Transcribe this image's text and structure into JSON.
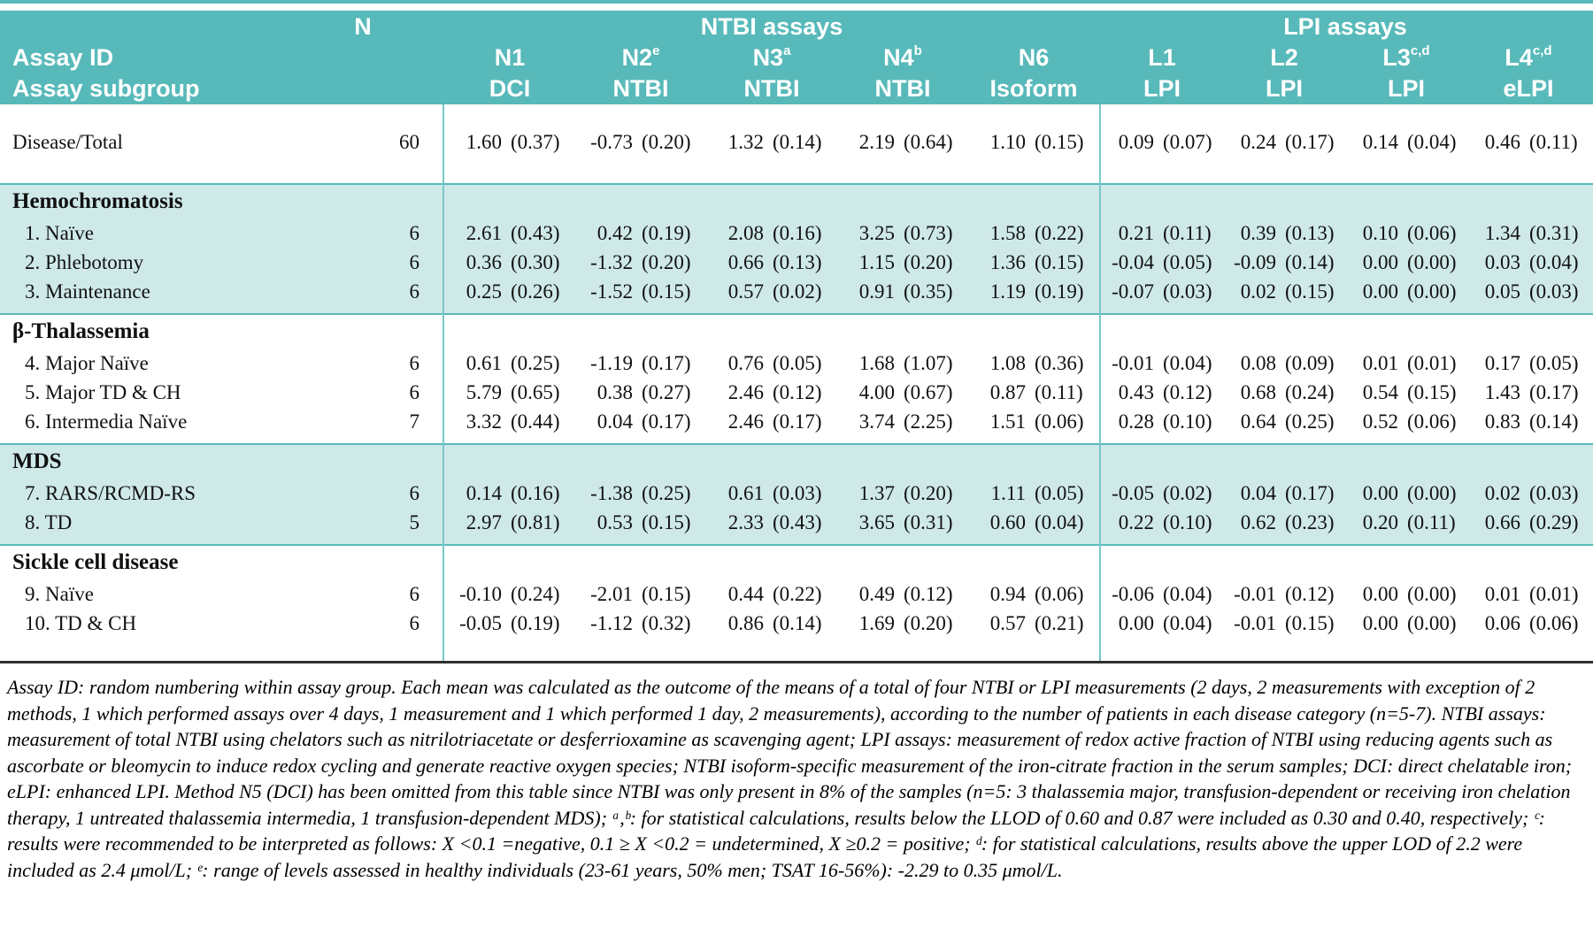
{
  "colors": {
    "header_teal": "#58b9ba",
    "section_tint": "#cfe9e9",
    "separator_teal": "#79c7c7",
    "bottom_rule": "#2f2f2f"
  },
  "table": {
    "top_header": {
      "n": "N",
      "ntbi": "NTBI assays",
      "lpi": "LPI assays"
    },
    "assay_id_label": "Assay ID",
    "assay_subgroup_label": "Assay subgroup",
    "columns": [
      {
        "id": "N1",
        "sup": "",
        "subgroup": "DCI",
        "group": "ntbi"
      },
      {
        "id": "N2",
        "sup": "e",
        "subgroup": "NTBI",
        "group": "ntbi"
      },
      {
        "id": "N3",
        "sup": "a",
        "subgroup": "NTBI",
        "group": "ntbi"
      },
      {
        "id": "N4",
        "sup": "b",
        "subgroup": "NTBI",
        "group": "ntbi"
      },
      {
        "id": "N6",
        "sup": "",
        "subgroup": "Isoform",
        "group": "ntbi"
      },
      {
        "id": "L1",
        "sup": "",
        "subgroup": "LPI",
        "group": "lpi"
      },
      {
        "id": "L2",
        "sup": "",
        "subgroup": "LPI",
        "group": "lpi"
      },
      {
        "id": "L3",
        "sup": "c,d",
        "subgroup": "LPI",
        "group": "lpi"
      },
      {
        "id": "L4",
        "sup": "c,d",
        "subgroup": "eLPI",
        "group": "lpi"
      }
    ],
    "sections": [
      {
        "title": "",
        "tint": false,
        "rows": [
          {
            "label": "Disease/Total",
            "n": "60",
            "values": [
              [
                "1.60",
                "(0.37)"
              ],
              [
                "-0.73",
                "(0.20)"
              ],
              [
                "1.32",
                "(0.14)"
              ],
              [
                "2.19",
                "(0.64)"
              ],
              [
                "1.10",
                "(0.15)"
              ],
              [
                "0.09",
                "(0.07)"
              ],
              [
                "0.24",
                "(0.17)"
              ],
              [
                "0.14",
                "(0.04)"
              ],
              [
                "0.46",
                "(0.11)"
              ]
            ]
          }
        ]
      },
      {
        "title": "Hemochromatosis",
        "tint": true,
        "rows": [
          {
            "label": "1. Naïve",
            "n": "6",
            "values": [
              [
                "2.61",
                "(0.43)"
              ],
              [
                "0.42",
                "(0.19)"
              ],
              [
                "2.08",
                "(0.16)"
              ],
              [
                "3.25",
                "(0.73)"
              ],
              [
                "1.58",
                "(0.22)"
              ],
              [
                "0.21",
                "(0.11)"
              ],
              [
                "0.39",
                "(0.13)"
              ],
              [
                "0.10",
                "(0.06)"
              ],
              [
                "1.34",
                "(0.31)"
              ]
            ]
          },
          {
            "label": "2. Phlebotomy",
            "n": "6",
            "values": [
              [
                "0.36",
                "(0.30)"
              ],
              [
                "-1.32",
                "(0.20)"
              ],
              [
                "0.66",
                "(0.13)"
              ],
              [
                "1.15",
                "(0.20)"
              ],
              [
                "1.36",
                "(0.15)"
              ],
              [
                "-0.04",
                "(0.05)"
              ],
              [
                "-0.09",
                "(0.14)"
              ],
              [
                "0.00",
                "(0.00)"
              ],
              [
                "0.03",
                "(0.04)"
              ]
            ]
          },
          {
            "label": "3. Maintenance",
            "n": "6",
            "values": [
              [
                "0.25",
                "(0.26)"
              ],
              [
                "-1.52",
                "(0.15)"
              ],
              [
                "0.57",
                "(0.02)"
              ],
              [
                "0.91",
                "(0.35)"
              ],
              [
                "1.19",
                "(0.19)"
              ],
              [
                "-0.07",
                "(0.03)"
              ],
              [
                "0.02",
                "(0.15)"
              ],
              [
                "0.00",
                "(0.00)"
              ],
              [
                "0.05",
                "(0.03)"
              ]
            ]
          }
        ]
      },
      {
        "title": "β-Thalassemia",
        "tint": false,
        "rows": [
          {
            "label": "4. Major Naïve",
            "n": "6",
            "values": [
              [
                "0.61",
                "(0.25)"
              ],
              [
                "-1.19",
                "(0.17)"
              ],
              [
                "0.76",
                "(0.05)"
              ],
              [
                "1.68",
                "(1.07)"
              ],
              [
                "1.08",
                "(0.36)"
              ],
              [
                "-0.01",
                "(0.04)"
              ],
              [
                "0.08",
                "(0.09)"
              ],
              [
                "0.01",
                "(0.01)"
              ],
              [
                "0.17",
                "(0.05)"
              ]
            ]
          },
          {
            "label": "5. Major TD & CH",
            "n": "6",
            "values": [
              [
                "5.79",
                "(0.65)"
              ],
              [
                "0.38",
                "(0.27)"
              ],
              [
                "2.46",
                "(0.12)"
              ],
              [
                "4.00",
                "(0.67)"
              ],
              [
                "0.87",
                "(0.11)"
              ],
              [
                "0.43",
                "(0.12)"
              ],
              [
                "0.68",
                "(0.24)"
              ],
              [
                "0.54",
                "(0.15)"
              ],
              [
                "1.43",
                "(0.17)"
              ]
            ]
          },
          {
            "label": "6. Intermedia Naïve",
            "n": "7",
            "values": [
              [
                "3.32",
                "(0.44)"
              ],
              [
                "0.04",
                "(0.17)"
              ],
              [
                "2.46",
                "(0.17)"
              ],
              [
                "3.74",
                "(2.25)"
              ],
              [
                "1.51",
                "(0.06)"
              ],
              [
                "0.28",
                "(0.10)"
              ],
              [
                "0.64",
                "(0.25)"
              ],
              [
                "0.52",
                "(0.06)"
              ],
              [
                "0.83",
                "(0.14)"
              ]
            ]
          }
        ]
      },
      {
        "title": "MDS",
        "tint": true,
        "rows": [
          {
            "label": "7. RARS/RCMD-RS",
            "n": "6",
            "values": [
              [
                "0.14",
                "(0.16)"
              ],
              [
                "-1.38",
                "(0.25)"
              ],
              [
                "0.61",
                "(0.03)"
              ],
              [
                "1.37",
                "(0.20)"
              ],
              [
                "1.11",
                "(0.05)"
              ],
              [
                "-0.05",
                "(0.02)"
              ],
              [
                "0.04",
                "(0.17)"
              ],
              [
                "0.00",
                "(0.00)"
              ],
              [
                "0.02",
                "(0.03)"
              ]
            ]
          },
          {
            "label": "8. TD",
            "n": "5",
            "values": [
              [
                "2.97",
                "(0.81)"
              ],
              [
                "0.53",
                "(0.15)"
              ],
              [
                "2.33",
                "(0.43)"
              ],
              [
                "3.65",
                "(0.31)"
              ],
              [
                "0.60",
                "(0.04)"
              ],
              [
                "0.22",
                "(0.10)"
              ],
              [
                "0.62",
                "(0.23)"
              ],
              [
                "0.20",
                "(0.11)"
              ],
              [
                "0.66",
                "(0.29)"
              ]
            ]
          }
        ]
      },
      {
        "title": "Sickle cell disease",
        "tint": false,
        "rows": [
          {
            "label": "9. Naïve",
            "n": "6",
            "values": [
              [
                "-0.10",
                "(0.24)"
              ],
              [
                "-2.01",
                "(0.15)"
              ],
              [
                "0.44",
                "(0.22)"
              ],
              [
                "0.49",
                "(0.12)"
              ],
              [
                "0.94",
                "(0.06)"
              ],
              [
                "-0.06",
                "(0.04)"
              ],
              [
                "-0.01",
                "(0.12)"
              ],
              [
                "0.00",
                "(0.00)"
              ],
              [
                "0.01",
                "(0.01)"
              ]
            ]
          },
          {
            "label": "10. TD & CH",
            "n": "6",
            "values": [
              [
                "-0.05",
                "(0.19)"
              ],
              [
                "-1.12",
                "(0.32)"
              ],
              [
                "0.86",
                "(0.14)"
              ],
              [
                "1.69",
                "(0.20)"
              ],
              [
                "0.57",
                "(0.21)"
              ],
              [
                "0.00",
                "(0.04)"
              ],
              [
                "-0.01",
                "(0.15)"
              ],
              [
                "0.00",
                "(0.00)"
              ],
              [
                "0.06",
                "(0.06)"
              ]
            ]
          }
        ]
      }
    ]
  },
  "footnote": "Assay ID: random numbering within assay group. Each mean was calculated as the outcome of the means of a total of four NTBI or LPI measurements (2 days, 2 measurements with exception of 2 methods, 1 which performed assays over 4 days, 1 measurement and 1 which performed 1 day, 2 measurements), according to the number of patients in each disease category (n=5-7). NTBI assays: measurement of total NTBI using chelators such as nitrilotriacetate or desferrioxamine as scavenging agent; LPI assays: measurement of redox active fraction of NTBI using reducing agents such as ascorbate or bleomycin to induce redox cycling and generate reactive oxygen species; NTBI isoform-specific measurement of the iron-citrate fraction in the serum samples; DCI: direct chelatable iron; eLPI: enhanced LPI. Method N5 (DCI) has been omitted from this table since NTBI was only present in 8% of the samples (n=5: 3 thalassemia major, transfusion-dependent or receiving iron chelation therapy, 1 untreated thalassemia intermedia, 1 transfusion-dependent MDS); ᵃ,ᵇ: for statistical calculations, results below the LLOD of 0.60 and 0.87 were included as 0.30 and 0.40, respectively; ᶜ: results were recommended to be interpreted as follows: X <0.1 =negative, 0.1 ≥ X <0.2 = undetermined, X ≥0.2 = positive; ᵈ: for statistical calculations, results above the upper LOD of 2.2 were included as 2.4 μmol/L; ᵉ: range of levels assessed in healthy individuals (23-61 years, 50% men; TSAT 16-56%): -2.29 to 0.35 μmol/L."
}
